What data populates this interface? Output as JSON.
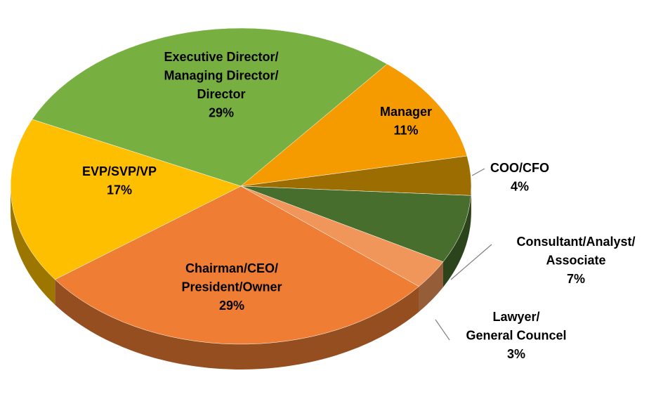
{
  "chart_data": {
    "type": "pie",
    "categories": [
      [
        "Executive Director/",
        "Managing Director/",
        "Director"
      ],
      [
        "Manager"
      ],
      [
        "COO/CFO"
      ],
      [
        "Consultant/Analyst/",
        "Associate"
      ],
      [
        "Lawyer/",
        "General Councel"
      ],
      [
        "Chairman/CEO/",
        "President/Owner"
      ],
      [
        "EVP/SVP/VP"
      ]
    ],
    "values": [
      29,
      11,
      4,
      7,
      3,
      29,
      17
    ],
    "value_labels": [
      "29%",
      "11%",
      "4%",
      "7%",
      "3%",
      "29%",
      "17%"
    ],
    "colors": [
      "#77b041",
      "#f59b00",
      "#9c6d00",
      "#476e2c",
      "#f1965a",
      "#ef7d33",
      "#fdbf00"
    ]
  }
}
